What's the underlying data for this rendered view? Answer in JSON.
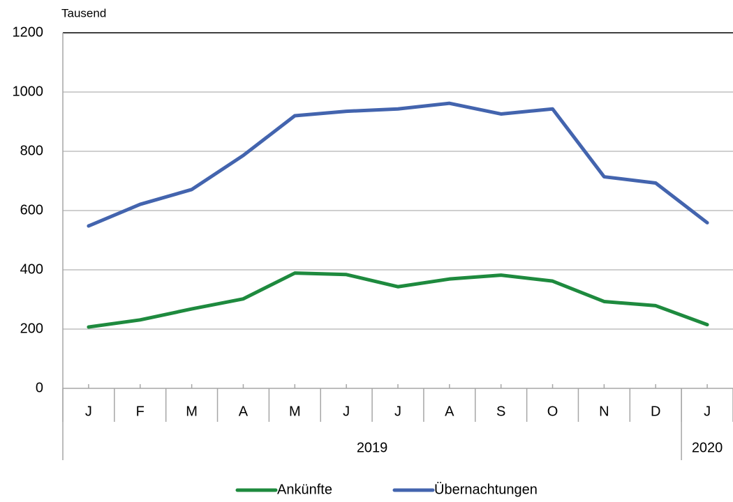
{
  "chart_data": {
    "type": "line",
    "y_axis_label": "Tausend",
    "categories": [
      "J",
      "F",
      "M",
      "A",
      "M",
      "J",
      "J",
      "A",
      "S",
      "O",
      "N",
      "D",
      "J"
    ],
    "category_groups": [
      {
        "label": "2019",
        "span": 12
      },
      {
        "label": "2020",
        "span": 1
      }
    ],
    "series": [
      {
        "name": "Ankünfte",
        "color": "#1e8a3e",
        "values": [
          207,
          231,
          268,
          302,
          389,
          384,
          343,
          369,
          382,
          362,
          293,
          279,
          215
        ]
      },
      {
        "name": "Übernachtungen",
        "color": "#4364ae",
        "values": [
          548,
          621,
          671,
          786,
          920,
          935,
          943,
          962,
          926,
          943,
          714,
          693,
          559
        ]
      }
    ],
    "ylim": [
      0,
      1200
    ],
    "yticks": [
      0,
      200,
      400,
      600,
      800,
      1000,
      1200
    ],
    "grid": true,
    "legend": "bottom"
  }
}
